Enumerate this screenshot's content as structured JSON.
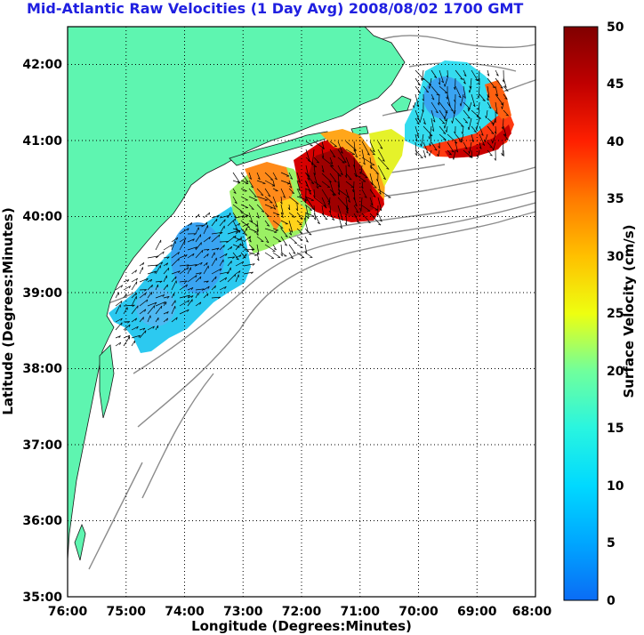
{
  "title": "Mid-Atlantic Raw Velocities (1 Day Avg) 2008/08/02 1700 GMT",
  "x_axis_label": "Longitude (Degrees:Minutes)",
  "y_axis_label": "Latitude (Degrees:Minutes)",
  "colorbar_label": "Surface Velocity (cm/s)",
  "x_ticks": [
    "76:00",
    "75:00",
    "74:00",
    "73:00",
    "72:00",
    "71:00",
    "70:00",
    "69:00",
    "68:00"
  ],
  "y_ticks": [
    "35:00",
    "36:00",
    "37:00",
    "38:00",
    "39:00",
    "40:00",
    "41:00",
    "42:00"
  ],
  "colorbar_ticks": [
    "0",
    "5",
    "10",
    "15",
    "20",
    "25",
    "30",
    "35",
    "40",
    "45",
    "50"
  ],
  "colors": {
    "title": "#1f1fe0",
    "land": "#5ef5b0",
    "ocean": "#ffffff",
    "bathymetry": "#8c8c8c",
    "grid": "#000000"
  },
  "colormap": [
    "#0a6cf5",
    "#00a6ff",
    "#00d9ff",
    "#29f5e0",
    "#70ff9c",
    "#b0ff5a",
    "#eeff10",
    "#ffc000",
    "#ff7a00",
    "#ff2000",
    "#c00000",
    "#800000"
  ],
  "chart_data": {
    "type": "heatmap",
    "x_range": [
      -76,
      -68
    ],
    "y_range": [
      35,
      42.5
    ],
    "value_range": [
      0,
      50
    ],
    "units": "cm/s",
    "regions": [
      {
        "lon": -74.3,
        "lat": 39.2,
        "velocity": 6
      },
      {
        "lon": -73.3,
        "lat": 39.9,
        "velocity": 18
      },
      {
        "lon": -72.9,
        "lat": 40.2,
        "velocity": 38
      },
      {
        "lon": -71.5,
        "lat": 40.4,
        "velocity": 47
      },
      {
        "lon": -70.9,
        "lat": 40.5,
        "velocity": 28
      },
      {
        "lon": -70.2,
        "lat": 40.9,
        "velocity": 18
      },
      {
        "lon": -69.2,
        "lat": 41.5,
        "velocity": 8
      },
      {
        "lon": -68.8,
        "lat": 41.2,
        "velocity": 40
      }
    ]
  }
}
